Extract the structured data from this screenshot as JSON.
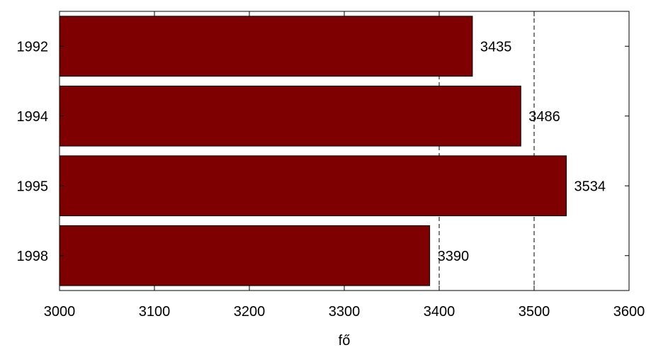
{
  "chart_data": {
    "type": "bar",
    "orientation": "horizontal",
    "categories": [
      "1992",
      "1994",
      "1995",
      "1998"
    ],
    "values": [
      3435,
      3486,
      3534,
      3390
    ],
    "data_labels": [
      "3435",
      "3486",
      "3534",
      "3390"
    ],
    "title": "",
    "xlabel": "fő",
    "ylabel": "",
    "xlim": [
      3000,
      3600
    ],
    "x_ticks": [
      3000,
      3100,
      3200,
      3300,
      3400,
      3500,
      3600
    ],
    "x_tick_labels": [
      "3000",
      "3100",
      "3200",
      "3300",
      "3400",
      "3500",
      "3600"
    ],
    "grid": "dashed vertical lines at 3400 and 3500",
    "grid_x": [
      3400,
      3500
    ],
    "legend": "none",
    "colors": {
      "bar": "#7f0000",
      "bar_edge": "#000000",
      "grid": "#000000"
    }
  }
}
